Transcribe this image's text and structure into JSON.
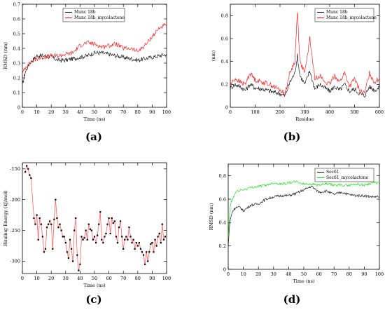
{
  "captions": [
    "(a)",
    "(b)",
    "(c)",
    "(d)"
  ],
  "chart_data": [
    {
      "type": "line",
      "panel": "a",
      "xlabel": "Time (ns)",
      "ylabel": "RMSD (nm)",
      "xlim": [
        0,
        100
      ],
      "ylim": [
        0,
        0.7
      ],
      "xticks": [
        0,
        10,
        20,
        30,
        40,
        50,
        60,
        70,
        80,
        90,
        100
      ],
      "yticks": [
        0,
        0.1,
        0.2,
        0.3,
        0.4,
        0.5,
        0.6,
        0.7
      ],
      "legend_position": "top-left",
      "colors": [
        "#000000",
        "#ff0000"
      ],
      "series": [
        {
          "name": "Munc 18b",
          "x": [
            0,
            2,
            5,
            8,
            10,
            15,
            20,
            25,
            30,
            35,
            40,
            45,
            50,
            55,
            60,
            65,
            70,
            75,
            80,
            85,
            90,
            95,
            100
          ],
          "values": [
            0.15,
            0.24,
            0.3,
            0.33,
            0.35,
            0.35,
            0.34,
            0.32,
            0.32,
            0.33,
            0.34,
            0.35,
            0.37,
            0.37,
            0.36,
            0.35,
            0.34,
            0.33,
            0.32,
            0.33,
            0.34,
            0.35,
            0.36
          ]
        },
        {
          "name": "Munc 18b_mycolactone",
          "x": [
            0,
            2,
            5,
            8,
            10,
            15,
            20,
            25,
            30,
            35,
            40,
            45,
            50,
            55,
            60,
            65,
            70,
            75,
            80,
            85,
            90,
            95,
            100
          ],
          "values": [
            0.23,
            0.27,
            0.3,
            0.32,
            0.33,
            0.34,
            0.35,
            0.35,
            0.36,
            0.37,
            0.42,
            0.44,
            0.43,
            0.41,
            0.42,
            0.43,
            0.4,
            0.4,
            0.38,
            0.42,
            0.48,
            0.54,
            0.56
          ]
        }
      ]
    },
    {
      "type": "line",
      "panel": "b",
      "xlabel": "Residue",
      "ylabel": "(nm)",
      "xlim": [
        0,
        600
      ],
      "ylim": [
        0,
        0.9
      ],
      "xticks": [
        0,
        100,
        200,
        300,
        400,
        500,
        600
      ],
      "yticks": [
        0,
        0.2,
        0.4,
        0.6,
        0.8
      ],
      "legend_position": "top-right",
      "colors": [
        "#000000",
        "#ff0000"
      ],
      "series": [
        {
          "name": "Munc 18b",
          "x": [
            0,
            20,
            40,
            60,
            80,
            100,
            130,
            160,
            200,
            220,
            240,
            260,
            270,
            280,
            300,
            320,
            340,
            360,
            380,
            400,
            420,
            440,
            460,
            480,
            500,
            520,
            540,
            560,
            580,
            600
          ],
          "values": [
            0.17,
            0.2,
            0.18,
            0.15,
            0.2,
            0.17,
            0.16,
            0.14,
            0.12,
            0.1,
            0.22,
            0.3,
            0.45,
            0.28,
            0.2,
            0.32,
            0.16,
            0.2,
            0.17,
            0.14,
            0.18,
            0.15,
            0.2,
            0.14,
            0.16,
            0.12,
            0.1,
            0.18,
            0.15,
            0.17
          ]
        },
        {
          "name": "Munc 18b_mycolactone",
          "x": [
            0,
            20,
            40,
            60,
            80,
            100,
            130,
            160,
            200,
            220,
            240,
            260,
            270,
            280,
            300,
            320,
            340,
            360,
            380,
            400,
            420,
            440,
            460,
            480,
            500,
            520,
            540,
            560,
            580,
            600
          ],
          "values": [
            0.2,
            0.25,
            0.22,
            0.2,
            0.3,
            0.24,
            0.22,
            0.2,
            0.15,
            0.12,
            0.3,
            0.4,
            0.85,
            0.4,
            0.3,
            0.6,
            0.25,
            0.28,
            0.22,
            0.2,
            0.28,
            0.22,
            0.3,
            0.18,
            0.25,
            0.15,
            0.12,
            0.3,
            0.22,
            0.25
          ]
        }
      ]
    },
    {
      "type": "line",
      "panel": "c",
      "xlabel": "Time (ns)",
      "ylabel": "Binding Energy (kJ/mol)",
      "xlim": [
        0,
        100
      ],
      "ylim": [
        -320,
        -140
      ],
      "xticks": [
        0,
        10,
        20,
        30,
        40,
        50,
        60,
        70,
        80,
        90,
        100
      ],
      "yticks": [
        -150,
        -200,
        -250,
        -300
      ],
      "colors": [
        "#000000",
        "#ff0000"
      ],
      "series": [
        {
          "x": [
            2,
            3,
            4,
            5,
            6,
            8,
            9,
            10,
            11,
            12,
            13,
            14,
            15,
            16,
            17,
            18,
            19,
            20,
            21,
            22,
            23,
            24,
            25,
            26,
            27,
            28,
            29,
            30,
            31,
            32,
            33,
            34,
            35,
            36,
            37,
            38,
            39,
            40,
            41,
            42,
            43,
            44,
            45,
            46,
            47,
            48,
            49,
            50,
            51,
            52,
            53,
            54,
            55,
            56,
            57,
            58,
            59,
            60,
            61,
            62,
            63,
            64,
            65,
            66,
            67,
            68,
            69,
            70,
            71,
            72,
            73,
            74,
            75,
            76,
            77,
            78,
            79,
            80,
            81,
            82,
            83,
            84,
            85,
            86,
            87,
            88,
            89,
            90,
            91,
            92,
            93,
            94,
            95,
            96,
            97,
            98,
            99
          ],
          "values": [
            -155,
            -145,
            -150,
            -160,
            -165,
            -230,
            -240,
            -225,
            -265,
            -230,
            -240,
            -260,
            -285,
            -280,
            -245,
            -240,
            -235,
            -240,
            -280,
            -232,
            -200,
            -230,
            -245,
            -240,
            -250,
            -260,
            -260,
            -270,
            -285,
            -295,
            -265,
            -280,
            -300,
            -250,
            -230,
            -290,
            -315,
            -305,
            -260,
            -265,
            -262,
            -250,
            -265,
            -240,
            -248,
            -250,
            -265,
            -260,
            -270,
            -258,
            -240,
            -220,
            -265,
            -270,
            -260,
            -255,
            -240,
            -230,
            -255,
            -230,
            -238,
            -235,
            -260,
            -270,
            -245,
            -235,
            -260,
            -280,
            -265,
            -260,
            -265,
            -245,
            -260,
            -270,
            -265,
            -280,
            -270,
            -275,
            -270,
            -280,
            -285,
            -290,
            -305,
            -285,
            -300,
            -285,
            -272,
            -270,
            -285,
            -265,
            -275,
            -260,
            -255,
            -270,
            -240,
            -265,
            -260
          ]
        }
      ]
    },
    {
      "type": "line",
      "panel": "d",
      "xlabel": "Time (ns)",
      "ylabel": "RMSD (nm)",
      "xlim": [
        0,
        100
      ],
      "ylim": [
        0,
        0.9
      ],
      "xticks": [
        0,
        10,
        20,
        30,
        40,
        50,
        60,
        70,
        80,
        90,
        100
      ],
      "yticks": [
        0,
        0.2,
        0.4,
        0.6,
        0.8
      ],
      "legend_position": "top-right",
      "colors": [
        "#000000",
        "#00dd00"
      ],
      "series": [
        {
          "name": "Sec61",
          "x": [
            0,
            1,
            2,
            3,
            5,
            8,
            10,
            15,
            20,
            25,
            30,
            35,
            40,
            45,
            50,
            55,
            60,
            65,
            70,
            75,
            80,
            85,
            90,
            95,
            100
          ],
          "values": [
            0.2,
            0.4,
            0.46,
            0.5,
            0.53,
            0.53,
            0.5,
            0.55,
            0.56,
            0.6,
            0.62,
            0.63,
            0.63,
            0.65,
            0.68,
            0.71,
            0.66,
            0.67,
            0.64,
            0.66,
            0.64,
            0.63,
            0.63,
            0.62,
            0.62
          ]
        },
        {
          "name": "Sec61_mycolactone",
          "x": [
            0,
            1,
            2,
            3,
            5,
            8,
            10,
            15,
            20,
            25,
            30,
            35,
            40,
            45,
            50,
            55,
            60,
            65,
            70,
            75,
            80,
            85,
            90,
            95,
            100
          ],
          "values": [
            0.25,
            0.5,
            0.58,
            0.6,
            0.66,
            0.68,
            0.68,
            0.7,
            0.71,
            0.72,
            0.74,
            0.73,
            0.74,
            0.75,
            0.73,
            0.73,
            0.72,
            0.73,
            0.72,
            0.72,
            0.72,
            0.73,
            0.72,
            0.74,
            0.74
          ]
        }
      ]
    }
  ]
}
